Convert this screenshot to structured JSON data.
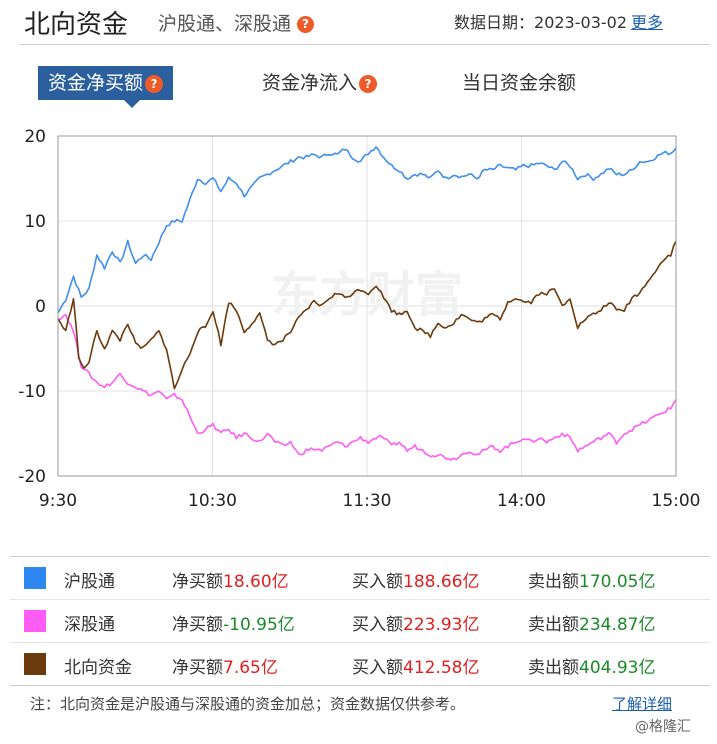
{
  "header": {
    "title": "北向资金",
    "subtitle": "沪股通、深股通",
    "help_glyph": "?",
    "date_label": "数据日期：",
    "date_value": "2023-03-02",
    "more_label": "更多"
  },
  "tabs": [
    {
      "label": "资金净买额",
      "active": true,
      "has_help": true
    },
    {
      "label": "资金净流入",
      "active": false,
      "has_help": true
    },
    {
      "label": "当日资金余额",
      "active": false,
      "has_help": false
    }
  ],
  "chart_watermark": "东方财富",
  "chart_data": {
    "type": "line",
    "x_ticks": [
      "9:30",
      "10:30",
      "11:30",
      "14:00",
      "15:00"
    ],
    "y_ticks": [
      "20",
      "10",
      "0",
      "-10",
      "-20"
    ],
    "ylim": [
      -20,
      20
    ],
    "x_points": 240,
    "series": [
      {
        "name": "沪股通",
        "color": "#3f8ef0",
        "keypoints": [
          [
            0,
            -0.8
          ],
          [
            3,
            0.8
          ],
          [
            6,
            3.5
          ],
          [
            9,
            1.0
          ],
          [
            12,
            2.0
          ],
          [
            15,
            6.0
          ],
          [
            18,
            4.5
          ],
          [
            21,
            6.5
          ],
          [
            24,
            5.0
          ],
          [
            27,
            7.5
          ],
          [
            30,
            5.0
          ],
          [
            33,
            6.0
          ],
          [
            36,
            5.5
          ],
          [
            39,
            7.5
          ],
          [
            42,
            9.5
          ],
          [
            45,
            10.0
          ],
          [
            48,
            10.0
          ],
          [
            51,
            12.5
          ],
          [
            54,
            15.0
          ],
          [
            57,
            14.5
          ],
          [
            60,
            15.0
          ],
          [
            63,
            13.5
          ],
          [
            66,
            15.0
          ],
          [
            69,
            14.5
          ],
          [
            72,
            13.0
          ],
          [
            75,
            14.0
          ],
          [
            78,
            15.0
          ],
          [
            81,
            15.5
          ],
          [
            84,
            16.0
          ],
          [
            87,
            16.5
          ],
          [
            90,
            17.0
          ],
          [
            93,
            17.5
          ],
          [
            96,
            17.5
          ],
          [
            99,
            17.8
          ],
          [
            102,
            17.5
          ],
          [
            105,
            18.0
          ],
          [
            108,
            17.8
          ],
          [
            111,
            18.5
          ],
          [
            114,
            17.5
          ],
          [
            117,
            17.0
          ],
          [
            120,
            18.0
          ],
          [
            123,
            18.8
          ],
          [
            126,
            17.5
          ],
          [
            129,
            16.5
          ],
          [
            132,
            16.0
          ],
          [
            135,
            15.0
          ],
          [
            138,
            15.5
          ],
          [
            141,
            15.5
          ],
          [
            144,
            15.0
          ],
          [
            147,
            16.0
          ],
          [
            150,
            15.0
          ],
          [
            153,
            15.5
          ],
          [
            156,
            15.2
          ],
          [
            159,
            15.5
          ],
          [
            162,
            15.0
          ],
          [
            165,
            16.0
          ],
          [
            168,
            16.0
          ],
          [
            171,
            16.5
          ],
          [
            174,
            16.2
          ],
          [
            177,
            16.0
          ],
          [
            180,
            16.5
          ],
          [
            183,
            16.5
          ],
          [
            186,
            16.8
          ],
          [
            189,
            16.5
          ],
          [
            192,
            16.0
          ],
          [
            195,
            17.0
          ],
          [
            198,
            16.5
          ],
          [
            201,
            15.0
          ],
          [
            204,
            15.5
          ],
          [
            207,
            15.0
          ],
          [
            210,
            15.5
          ],
          [
            213,
            16.2
          ],
          [
            216,
            15.5
          ],
          [
            219,
            15.5
          ],
          [
            222,
            16.0
          ],
          [
            225,
            17.0
          ],
          [
            228,
            17.0
          ],
          [
            231,
            17.5
          ],
          [
            234,
            18.0
          ],
          [
            237,
            18.0
          ],
          [
            239,
            18.6
          ]
        ]
      },
      {
        "name": "深股通",
        "color": "#ff5cf5",
        "keypoints": [
          [
            0,
            -1.5
          ],
          [
            3,
            -1.0
          ],
          [
            6,
            -3.0
          ],
          [
            9,
            -7.0
          ],
          [
            12,
            -8.0
          ],
          [
            15,
            -9.0
          ],
          [
            18,
            -9.5
          ],
          [
            21,
            -9.0
          ],
          [
            24,
            -8.0
          ],
          [
            27,
            -9.0
          ],
          [
            30,
            -9.5
          ],
          [
            33,
            -10.0
          ],
          [
            36,
            -10.5
          ],
          [
            39,
            -10.0
          ],
          [
            42,
            -11.0
          ],
          [
            45,
            -10.5
          ],
          [
            48,
            -11.0
          ],
          [
            51,
            -13.0
          ],
          [
            54,
            -15.0
          ],
          [
            57,
            -14.5
          ],
          [
            60,
            -14.0
          ],
          [
            63,
            -15.0
          ],
          [
            66,
            -14.5
          ],
          [
            69,
            -15.5
          ],
          [
            72,
            -15.0
          ],
          [
            75,
            -15.5
          ],
          [
            78,
            -16.0
          ],
          [
            81,
            -15.0
          ],
          [
            84,
            -16.0
          ],
          [
            87,
            -16.5
          ],
          [
            90,
            -16.0
          ],
          [
            93,
            -17.5
          ],
          [
            96,
            -17.0
          ],
          [
            99,
            -16.8
          ],
          [
            102,
            -17.0
          ],
          [
            105,
            -16.5
          ],
          [
            108,
            -16.0
          ],
          [
            111,
            -16.5
          ],
          [
            114,
            -16.0
          ],
          [
            117,
            -15.5
          ],
          [
            120,
            -16.0
          ],
          [
            123,
            -15.5
          ],
          [
            126,
            -15.5
          ],
          [
            129,
            -16.5
          ],
          [
            132,
            -16.0
          ],
          [
            135,
            -17.0
          ],
          [
            138,
            -16.5
          ],
          [
            141,
            -17.0
          ],
          [
            144,
            -17.5
          ],
          [
            147,
            -17.5
          ],
          [
            150,
            -17.8
          ],
          [
            153,
            -18.0
          ],
          [
            156,
            -17.5
          ],
          [
            159,
            -17.0
          ],
          [
            162,
            -17.5
          ],
          [
            165,
            -17.0
          ],
          [
            168,
            -16.5
          ],
          [
            171,
            -17.0
          ],
          [
            174,
            -16.5
          ],
          [
            177,
            -16.0
          ],
          [
            180,
            -15.5
          ],
          [
            183,
            -16.0
          ],
          [
            186,
            -15.5
          ],
          [
            189,
            -16.0
          ],
          [
            192,
            -15.5
          ],
          [
            195,
            -15.0
          ],
          [
            198,
            -15.5
          ],
          [
            201,
            -17.0
          ],
          [
            204,
            -16.5
          ],
          [
            207,
            -16.0
          ],
          [
            210,
            -15.5
          ],
          [
            213,
            -15.0
          ],
          [
            216,
            -16.0
          ],
          [
            219,
            -15.0
          ],
          [
            222,
            -14.5
          ],
          [
            225,
            -14.0
          ],
          [
            228,
            -13.5
          ],
          [
            231,
            -13.0
          ],
          [
            234,
            -12.5
          ],
          [
            237,
            -12.0
          ],
          [
            239,
            -11.0
          ]
        ]
      },
      {
        "name": "北向资金",
        "color": "#6b3a0d",
        "keypoints": [
          [
            0,
            -1.5
          ],
          [
            3,
            -3.0
          ],
          [
            6,
            1.0
          ],
          [
            8,
            -6.0
          ],
          [
            10,
            -7.5
          ],
          [
            12,
            -6.5
          ],
          [
            15,
            -3.0
          ],
          [
            18,
            -5.0
          ],
          [
            21,
            -3.0
          ],
          [
            24,
            -4.0
          ],
          [
            27,
            -2.0
          ],
          [
            30,
            -4.5
          ],
          [
            33,
            -5.0
          ],
          [
            36,
            -4.0
          ],
          [
            39,
            -3.0
          ],
          [
            42,
            -5.0
          ],
          [
            45,
            -9.8
          ],
          [
            48,
            -7.5
          ],
          [
            51,
            -5.5
          ],
          [
            54,
            -3.0
          ],
          [
            57,
            -2.5
          ],
          [
            60,
            -0.5
          ],
          [
            63,
            -4.5
          ],
          [
            66,
            0.5
          ],
          [
            69,
            -0.5
          ],
          [
            72,
            -3.0
          ],
          [
            75,
            -2.0
          ],
          [
            78,
            -1.0
          ],
          [
            81,
            -4.0
          ],
          [
            84,
            -4.5
          ],
          [
            87,
            -4.0
          ],
          [
            90,
            -3.0
          ],
          [
            93,
            -1.5
          ],
          [
            96,
            -0.5
          ],
          [
            99,
            0.5
          ],
          [
            102,
            0.0
          ],
          [
            105,
            1.0
          ],
          [
            108,
            1.5
          ],
          [
            111,
            1.0
          ],
          [
            114,
            1.5
          ],
          [
            117,
            2.0
          ],
          [
            120,
            1.5
          ],
          [
            123,
            2.5
          ],
          [
            126,
            1.0
          ],
          [
            129,
            -0.5
          ],
          [
            132,
            -1.0
          ],
          [
            135,
            -0.5
          ],
          [
            138,
            -2.5
          ],
          [
            141,
            -3.0
          ],
          [
            144,
            -3.5
          ],
          [
            147,
            -2.0
          ],
          [
            150,
            -2.5
          ],
          [
            153,
            -2.0
          ],
          [
            156,
            -1.0
          ],
          [
            159,
            -1.5
          ],
          [
            162,
            -2.0
          ],
          [
            165,
            -1.5
          ],
          [
            168,
            -1.0
          ],
          [
            171,
            -1.5
          ],
          [
            174,
            0.5
          ],
          [
            177,
            1.0
          ],
          [
            180,
            0.5
          ],
          [
            183,
            0.5
          ],
          [
            186,
            1.5
          ],
          [
            189,
            1.5
          ],
          [
            192,
            2.0
          ],
          [
            195,
            0.0
          ],
          [
            198,
            1.0
          ],
          [
            201,
            -2.5
          ],
          [
            204,
            -1.5
          ],
          [
            207,
            -1.0
          ],
          [
            210,
            -0.5
          ],
          [
            213,
            0.5
          ],
          [
            216,
            -0.5
          ],
          [
            219,
            -0.5
          ],
          [
            222,
            1.0
          ],
          [
            225,
            1.5
          ],
          [
            228,
            3.0
          ],
          [
            231,
            4.0
          ],
          [
            234,
            5.5
          ],
          [
            237,
            6.0
          ],
          [
            239,
            7.65
          ]
        ]
      }
    ]
  },
  "legend": [
    {
      "name": "沪股通",
      "color": "#2e86f0",
      "net_label": "净买额",
      "net_value": "18.60亿",
      "net_color": "red",
      "buy_label": "买入额",
      "buy_value": "188.66亿",
      "sell_label": "卖出额",
      "sell_value": "170.05亿"
    },
    {
      "name": "深股通",
      "color": "#ff5cf5",
      "net_label": "净买额",
      "net_value": "-10.95亿",
      "net_color": "green",
      "buy_label": "买入额",
      "buy_value": "223.93亿",
      "sell_label": "卖出额",
      "sell_value": "234.87亿"
    },
    {
      "name": "北向资金",
      "color": "#6b3a0d",
      "net_label": "净买额",
      "net_value": "7.65亿",
      "net_color": "red",
      "buy_label": "买入额",
      "buy_value": "412.58亿",
      "sell_label": "卖出额",
      "sell_value": "404.93亿"
    }
  ],
  "footer": {
    "note": "注：北向资金是沪股通与深股通的资金加总；资金数据仅供参考。",
    "detail_link": "了解详细",
    "watermark": "@格隆汇"
  }
}
